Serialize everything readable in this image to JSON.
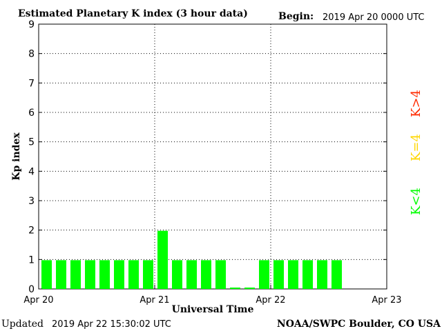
{
  "chart_data": {
    "type": "bar",
    "title": "Estimated Planetary K index (3 hour data)",
    "begin_label": "Begin:",
    "begin_value": "2019 Apr 20 0000 UTC",
    "xlabel": "Universal Time",
    "ylabel": "Kp index",
    "ylim": [
      0,
      9
    ],
    "yticks": [
      "0",
      "1",
      "2",
      "3",
      "4",
      "5",
      "6",
      "7",
      "8",
      "9"
    ],
    "xticks": [
      "Apr 20",
      "Apr 21",
      "Apr 22",
      "Apr 23"
    ],
    "grid": true,
    "bar_color": "#00ff00",
    "values": [
      1,
      1,
      1,
      1,
      1,
      1,
      1,
      1,
      2,
      1,
      1,
      1,
      1,
      0.07,
      0.07,
      1,
      1,
      1,
      1,
      1,
      1
    ],
    "legend": [
      {
        "label": "K<4",
        "color": "#00ff00"
      },
      {
        "label": "K=4",
        "color": "#ffd700"
      },
      {
        "label": "K>4",
        "color": "#ff2a00"
      }
    ]
  },
  "footer": {
    "updated_label": "Updated",
    "updated_value": "2019 Apr 22 15:30:02 UTC",
    "source": "NOAA/SWPC Boulder, CO USA"
  }
}
